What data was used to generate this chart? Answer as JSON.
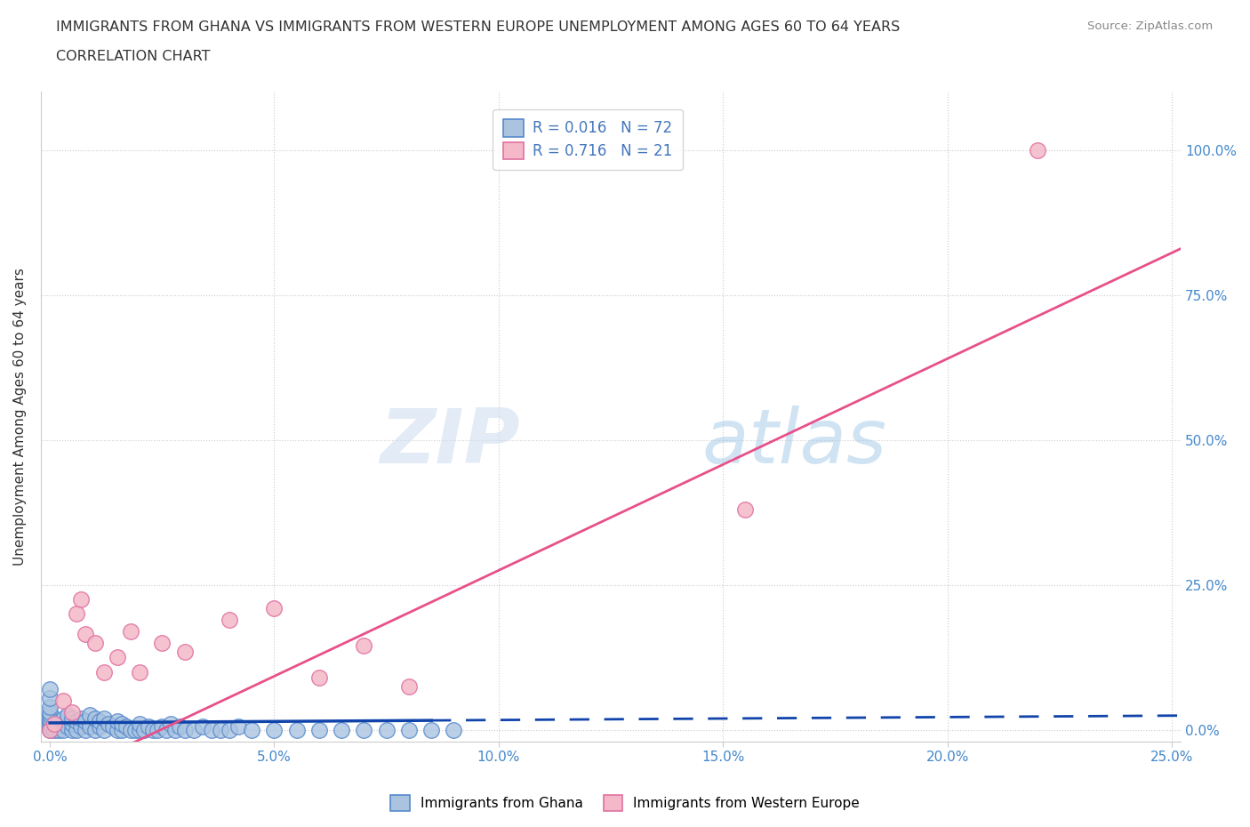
{
  "title_line1": "IMMIGRANTS FROM GHANA VS IMMIGRANTS FROM WESTERN EUROPE UNEMPLOYMENT AMONG AGES 60 TO 64 YEARS",
  "title_line2": "CORRELATION CHART",
  "source_text": "Source: ZipAtlas.com",
  "ylabel": "Unemployment Among Ages 60 to 64 years",
  "xlim": [
    -0.002,
    0.252
  ],
  "ylim": [
    -0.02,
    1.1
  ],
  "xticks": [
    0.0,
    0.05,
    0.1,
    0.15,
    0.2,
    0.25
  ],
  "yticks": [
    0.0,
    0.25,
    0.5,
    0.75,
    1.0
  ],
  "ytick_labels_right": [
    "0.0%",
    "25.0%",
    "50.0%",
    "75.0%",
    "100.0%"
  ],
  "xtick_labels": [
    "0.0%",
    "5.0%",
    "10.0%",
    "15.0%",
    "20.0%",
    "25.0%"
  ],
  "ghana_color": "#aac4e0",
  "ghana_edge_color": "#5588cc",
  "western_color": "#f4b8c8",
  "western_edge_color": "#e070a0",
  "ghana_R": 0.016,
  "ghana_N": 72,
  "western_R": 0.716,
  "western_N": 21,
  "ghana_line_color": "#1144aa",
  "western_line_color": "#e8508a",
  "legend_ghana_label": "Immigrants from Ghana",
  "legend_western_label": "Immigrants from Western Europe",
  "watermark_zip": "ZIP",
  "watermark_atlas": "atlas",
  "ghana_line_solid_end": 0.085,
  "ghana_line_intercept": 0.012,
  "ghana_line_slope": 0.05,
  "western_line_intercept": -0.09,
  "western_line_slope": 3.65,
  "ghana_points_x": [
    0.0,
    0.0,
    0.0,
    0.0,
    0.0,
    0.0,
    0.0,
    0.0,
    0.0,
    0.0,
    0.001,
    0.001,
    0.002,
    0.002,
    0.003,
    0.003,
    0.004,
    0.004,
    0.005,
    0.005,
    0.005,
    0.006,
    0.006,
    0.007,
    0.007,
    0.008,
    0.008,
    0.009,
    0.009,
    0.01,
    0.01,
    0.011,
    0.011,
    0.012,
    0.012,
    0.013,
    0.014,
    0.015,
    0.015,
    0.016,
    0.016,
    0.017,
    0.018,
    0.019,
    0.02,
    0.02,
    0.021,
    0.022,
    0.023,
    0.024,
    0.025,
    0.026,
    0.027,
    0.028,
    0.029,
    0.03,
    0.032,
    0.034,
    0.036,
    0.038,
    0.04,
    0.042,
    0.045,
    0.05,
    0.055,
    0.06,
    0.065,
    0.07,
    0.075,
    0.08,
    0.085,
    0.09
  ],
  "ghana_points_y": [
    0.0,
    0.005,
    0.01,
    0.015,
    0.02,
    0.025,
    0.03,
    0.04,
    0.055,
    0.07,
    0.0,
    0.01,
    0.0,
    0.015,
    0.0,
    0.02,
    0.005,
    0.025,
    0.0,
    0.01,
    0.02,
    0.0,
    0.015,
    0.005,
    0.02,
    0.0,
    0.015,
    0.005,
    0.025,
    0.0,
    0.02,
    0.005,
    0.015,
    0.0,
    0.02,
    0.01,
    0.005,
    0.0,
    0.015,
    0.0,
    0.01,
    0.005,
    0.0,
    0.0,
    0.0,
    0.01,
    0.0,
    0.005,
    0.0,
    0.0,
    0.005,
    0.0,
    0.01,
    0.0,
    0.005,
    0.0,
    0.0,
    0.005,
    0.0,
    0.0,
    0.0,
    0.005,
    0.0,
    0.0,
    0.0,
    0.0,
    0.0,
    0.0,
    0.0,
    0.0,
    0.0,
    0.0
  ],
  "western_points_x": [
    0.0,
    0.001,
    0.003,
    0.005,
    0.006,
    0.007,
    0.008,
    0.01,
    0.012,
    0.015,
    0.018,
    0.02,
    0.025,
    0.03,
    0.04,
    0.05,
    0.06,
    0.07,
    0.08,
    0.155,
    0.22
  ],
  "western_points_y": [
    0.0,
    0.01,
    0.05,
    0.03,
    0.2,
    0.225,
    0.165,
    0.15,
    0.1,
    0.125,
    0.17,
    0.1,
    0.15,
    0.135,
    0.19,
    0.21,
    0.09,
    0.145,
    0.075,
    0.38,
    1.0
  ]
}
